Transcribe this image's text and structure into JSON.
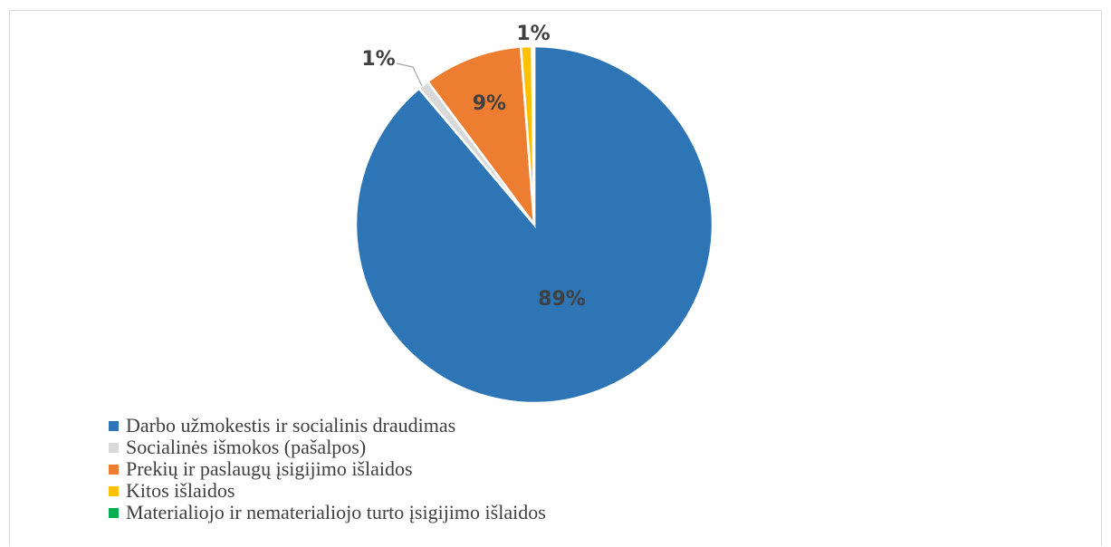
{
  "chart_data": {
    "type": "pie",
    "title": "",
    "slices": [
      {
        "name": "Darbo užmokestis ir socialinis draudimas",
        "value": 89,
        "label": "89%",
        "color": "#2e75b6"
      },
      {
        "name": "Socialinės išmokos (pašalpos)",
        "value": 1,
        "label": "1%",
        "color": "#d9d9d9"
      },
      {
        "name": "Prekių ir paslaugų įsigijimo išlaidos",
        "value": 9,
        "label": "9%",
        "color": "#ed7d31"
      },
      {
        "name": "Kitos išlaidos",
        "value": 1,
        "label": "1%",
        "color": "#ffc000"
      },
      {
        "name": "Materialiojo ir nematerialiojo turto įsigijimo išlaidos",
        "value": 0.2,
        "label": "",
        "color": "#00b050"
      }
    ],
    "legend_position": "bottom-left"
  }
}
